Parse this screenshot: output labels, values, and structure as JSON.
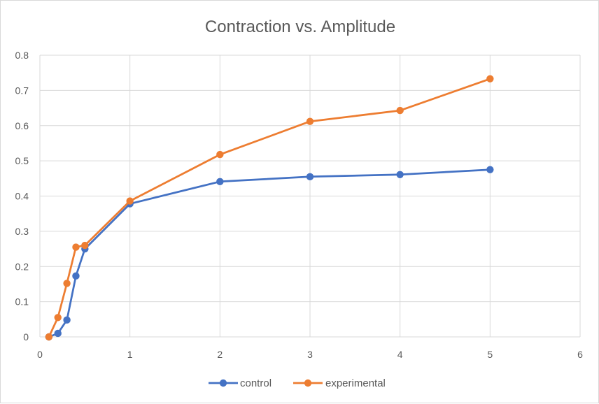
{
  "chart_data": {
    "type": "line",
    "title": "Contraction vs. Amplitude",
    "xlabel": "",
    "ylabel": "",
    "xlim": [
      0,
      6
    ],
    "ylim": [
      0,
      0.8
    ],
    "x_ticks": [
      0,
      1,
      2,
      3,
      4,
      5,
      6
    ],
    "y_ticks": [
      0,
      0.1,
      0.2,
      0.3,
      0.4,
      0.5,
      0.6,
      0.7,
      0.8
    ],
    "grid": true,
    "legend_position": "bottom",
    "series": [
      {
        "name": "control",
        "color": "#4472C4",
        "x": [
          0.1,
          0.2,
          0.3,
          0.4,
          0.5,
          1,
          2,
          3,
          4,
          5
        ],
        "y": [
          0,
          0.01,
          0.048,
          0.173,
          0.25,
          0.378,
          0.441,
          0.455,
          0.461,
          0.475
        ]
      },
      {
        "name": "experimental",
        "color": "#ED7D31",
        "x": [
          0.1,
          0.2,
          0.3,
          0.4,
          0.5,
          1,
          2,
          3,
          4,
          5
        ],
        "y": [
          0,
          0.055,
          0.152,
          0.255,
          0.26,
          0.386,
          0.518,
          0.612,
          0.643,
          0.733
        ]
      }
    ]
  }
}
